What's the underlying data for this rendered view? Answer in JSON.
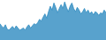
{
  "chart_data": {
    "type": "area",
    "values": [
      30,
      25,
      22,
      28,
      20,
      18,
      22,
      25,
      20,
      26,
      22,
      18,
      20,
      22,
      18,
      24,
      28,
      22,
      26,
      30,
      28,
      32,
      38,
      35,
      42,
      48,
      40,
      52,
      62,
      55,
      68,
      60,
      50,
      58,
      65,
      58,
      70,
      60,
      52,
      62,
      68,
      58,
      52,
      60,
      55,
      48,
      52,
      58,
      50,
      55,
      48,
      52,
      46,
      52,
      50,
      45,
      50,
      48,
      55,
      50
    ],
    "color": "#2e8bc0",
    "xlim": [
      0,
      59
    ],
    "ylim": [
      0,
      73.5
    ],
    "tick_labels": false,
    "grid": false
  }
}
